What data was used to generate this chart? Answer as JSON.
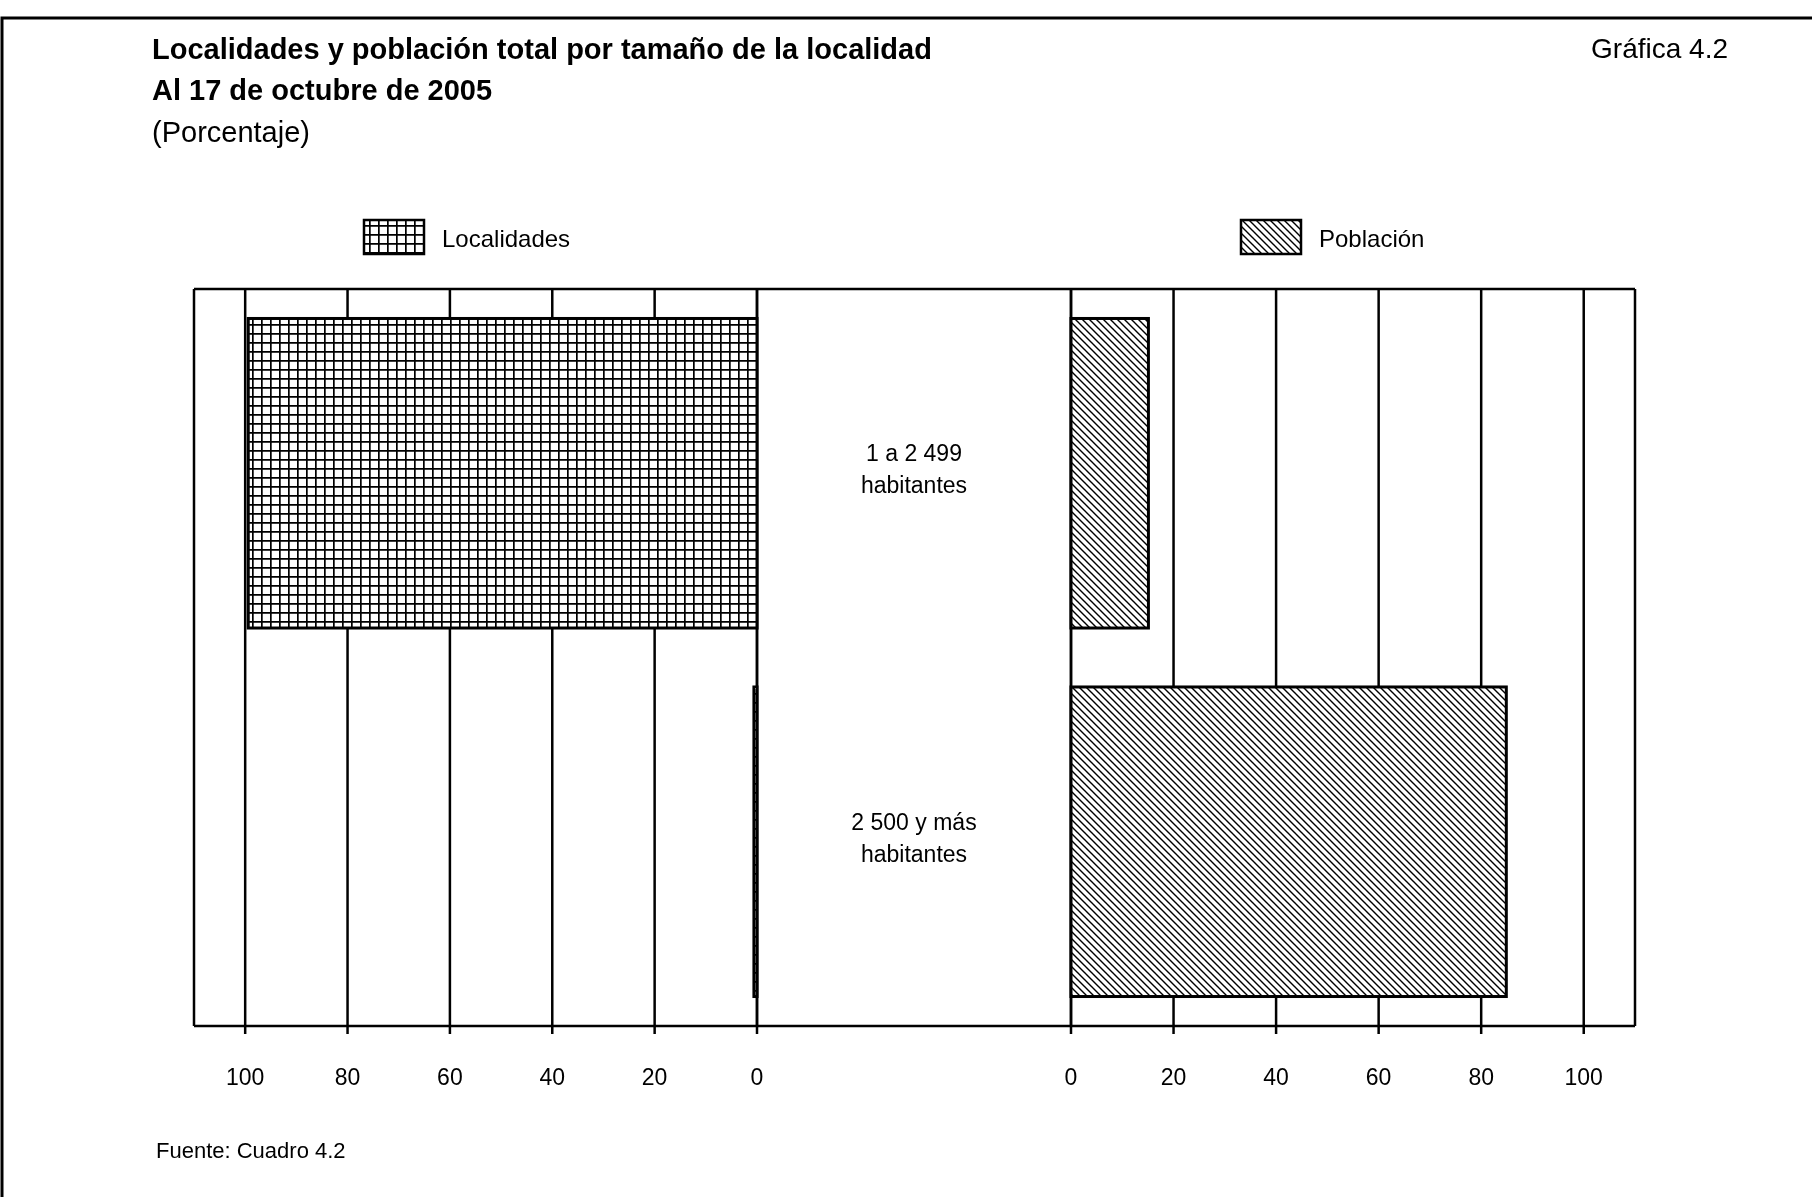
{
  "chart_data": [
    {
      "type": "bar",
      "orientation": "horizontal",
      "title": "Localidades y población total por tamaño de la localidad",
      "subtitle": "Al 17 de octubre de 2005",
      "annotations": [
        "(Porcentaje)",
        "Gráfica 4.2",
        "Fuente: Cuadro 4.2"
      ],
      "categories": [
        "1 a 2 499 habitantes",
        "2 500 y más habitantes"
      ],
      "series": [
        {
          "name": "Localidades",
          "color": "#000000",
          "values": [
            99.4,
            0.6
          ]
        }
      ],
      "xlim": [
        110,
        0
      ],
      "xticks": [
        100,
        80,
        60,
        40,
        20,
        0
      ],
      "grid": "x",
      "legend": "top"
    },
    {
      "type": "bar",
      "orientation": "horizontal",
      "categories": [
        null,
        null
      ],
      "series": [
        {
          "name": "Población",
          "color": "#000000",
          "values": [
            15.1,
            84.9
          ]
        }
      ],
      "xlim": [
        0,
        110
      ],
      "xticks": [
        0,
        20,
        40,
        60,
        80,
        100
      ],
      "grid": "x",
      "legend": "top",
      "tick_labels": "x"
    }
  ]
}
